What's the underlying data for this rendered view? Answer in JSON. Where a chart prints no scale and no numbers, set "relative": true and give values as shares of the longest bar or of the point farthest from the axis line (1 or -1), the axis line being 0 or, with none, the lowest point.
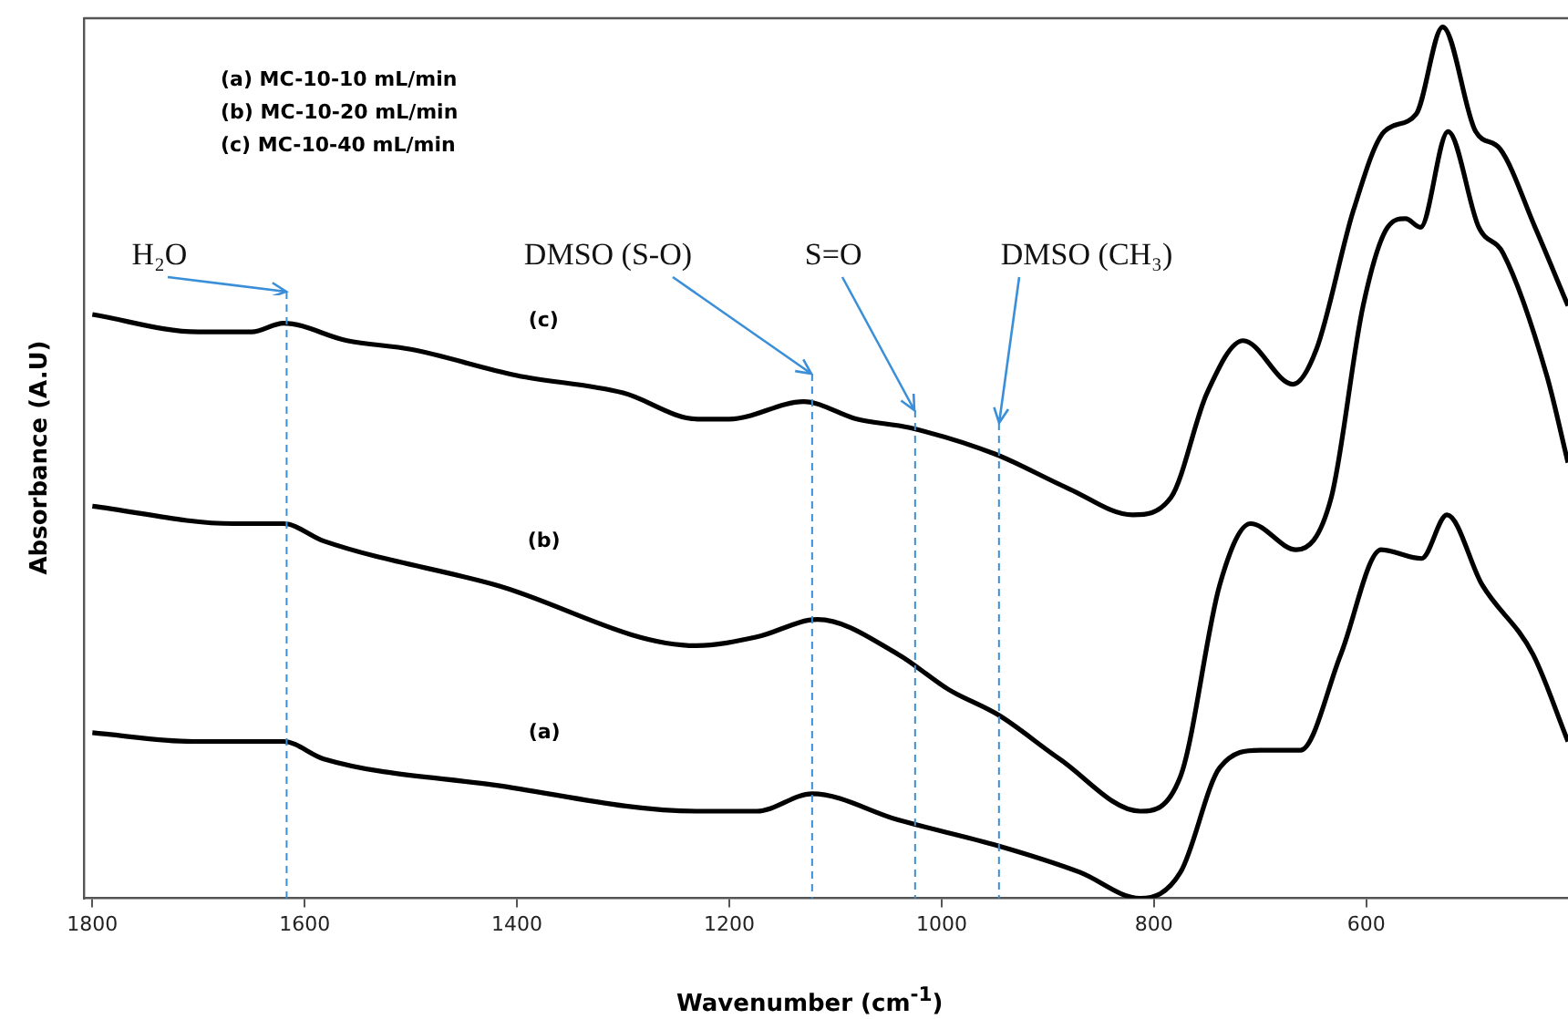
{
  "chart_data": {
    "type": "line",
    "relative": true,
    "xlabel": "Wavenumber (cm$^{-1}$)",
    "ylabel": "Absorbance (A.U)",
    "xlim": [
      1808,
      410
    ],
    "xticks": [
      1800,
      1600,
      1400,
      1200,
      1000,
      800,
      600
    ],
    "tick_labels": "x",
    "grid": false,
    "legend": false,
    "marker": "none",
    "line_style": "solid",
    "annotations": [
      "(a) MC-10-10 mL/min",
      "(b) MC-10-20 mL/min",
      "(c) MC-10-40 mL/min"
    ],
    "ref_lines": [
      {
        "axis": "x",
        "value": 1617,
        "label": "H₂O",
        "color": "#3a8fd8",
        "line_style": "dashed"
      },
      {
        "axis": "x",
        "value": 1122,
        "label": "DMSO (S-O)",
        "color": "#3a8fd8",
        "line_style": "dashed"
      },
      {
        "axis": "x",
        "value": 1025,
        "label": "S=O",
        "color": "#3a8fd8",
        "line_style": "dashed"
      },
      {
        "axis": "x",
        "value": 946,
        "label": "DMSO (CH₃)",
        "color": "#3a8fd8",
        "line_style": "dashed"
      }
    ],
    "series": [
      {
        "name": "(a)",
        "color": "#000000",
        "x": [
          1800,
          1705,
          1620,
          1582,
          1421,
          1231,
          1174,
          1122,
          1041,
          946,
          870,
          813,
          775,
          738,
          700,
          662,
          624,
          586,
          548,
          524,
          491,
          443,
          410
        ],
        "values": [
          0.19,
          0.18,
          0.18,
          0.16,
          0.13,
          0.1,
          0.1,
          0.12,
          0.09,
          0.06,
          0.03,
          0,
          0.03,
          0.15,
          0.17,
          0.17,
          0.28,
          0.4,
          0.39,
          0.44,
          0.36,
          0.28,
          0.18
        ]
      },
      {
        "name": "(b)",
        "color": "#000000",
        "x": [
          1800,
          1667,
          1620,
          1582,
          1421,
          1231,
          1174,
          1117,
          1041,
          994,
          946,
          889,
          813,
          775,
          738,
          709,
          666,
          633,
          603,
          580,
          563,
          549,
          523,
          494,
          471,
          430,
          410
        ],
        "values": [
          0.45,
          0.43,
          0.43,
          0.41,
          0.36,
          0.29,
          0.3,
          0.32,
          0.28,
          0.24,
          0.21,
          0.16,
          0.1,
          0.14,
          0.36,
          0.43,
          0.4,
          0.46,
          0.68,
          0.77,
          0.78,
          0.77,
          0.88,
          0.77,
          0.74,
          0.6,
          0.5
        ]
      },
      {
        "name": "(c)",
        "color": "#000000",
        "x": [
          1800,
          1700,
          1650,
          1620,
          1560,
          1500,
          1400,
          1300,
          1230,
          1200,
          1130,
          1080,
          1030,
          950,
          880,
          820,
          784,
          750,
          716,
          669,
          647,
          612,
          583,
          553,
          528,
          497,
          474,
          441,
          410
        ],
        "values": [
          0.67,
          0.65,
          0.65,
          0.66,
          0.64,
          0.63,
          0.6,
          0.58,
          0.55,
          0.55,
          0.57,
          0.55,
          0.54,
          0.51,
          0.47,
          0.44,
          0.46,
          0.58,
          0.64,
          0.59,
          0.63,
          0.79,
          0.88,
          0.9,
          1,
          0.88,
          0.86,
          0.77,
          0.68
        ]
      }
    ]
  }
}
